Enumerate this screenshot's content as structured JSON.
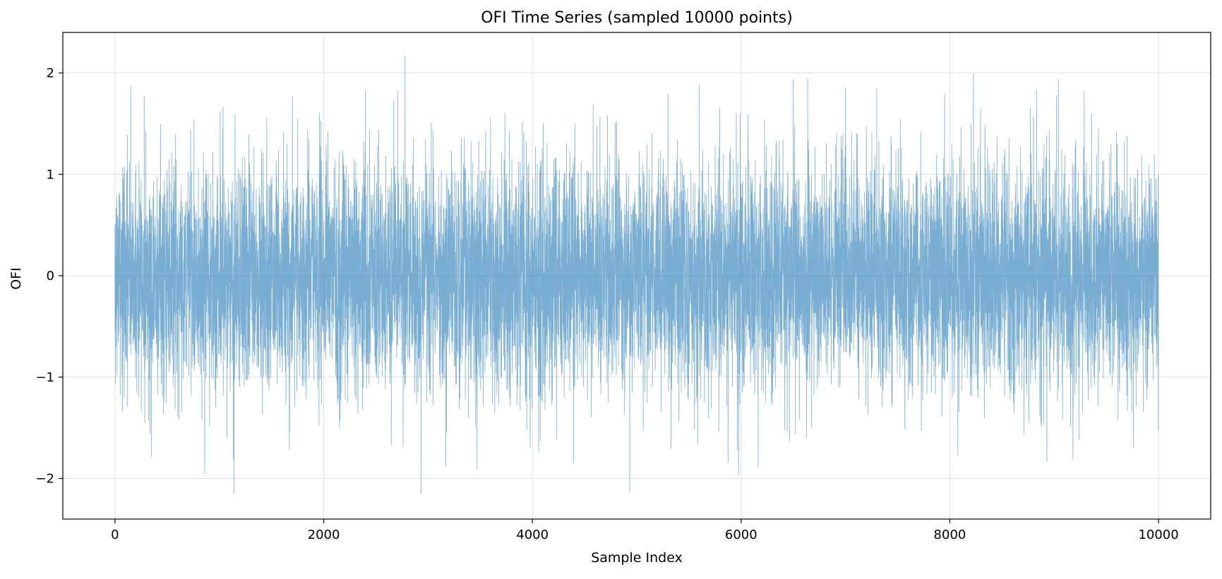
{
  "chart_data": {
    "type": "line",
    "title": "OFI Time Series (sampled 10000 points)",
    "xlabel": "Sample Index",
    "ylabel": "OFI",
    "xlim": [
      -500,
      10500
    ],
    "ylim": [
      -2.4,
      2.4
    ],
    "xticks": [
      0,
      2000,
      4000,
      6000,
      8000,
      10000
    ],
    "xtick_labels": [
      "0",
      "2000",
      "4000",
      "6000",
      "8000",
      "10000"
    ],
    "yticks": [
      -2,
      -1,
      0,
      1,
      2
    ],
    "ytick_labels": [
      "−2",
      "−1",
      "0",
      "1",
      "2"
    ],
    "grid": true,
    "legend": "none",
    "colors": {
      "series": "#1f77b4",
      "grid": "#e0e0e0",
      "axes": "#000000"
    },
    "series": [
      {
        "name": "OFI",
        "n_points": 10000,
        "x_start": 0,
        "x_end": 9999,
        "mean": 0,
        "std": 0.55,
        "min": -2.15,
        "max": 2.17,
        "notable_peaks": [
          {
            "x": 2780,
            "y": 2.17
          },
          {
            "x": 9040,
            "y": 1.94
          },
          {
            "x": 6500,
            "y": 1.93
          },
          {
            "x": 5600,
            "y": 1.88
          },
          {
            "x": 150,
            "y": 1.87
          },
          {
            "x": 2400,
            "y": 1.83
          },
          {
            "x": 7300,
            "y": 1.85
          },
          {
            "x": 7000,
            "y": 1.85
          },
          {
            "x": 1700,
            "y": 1.77
          },
          {
            "x": 5300,
            "y": 1.79
          },
          {
            "x": 7950,
            "y": 1.8
          }
        ],
        "notable_troughs": [
          {
            "x": 1140,
            "y": -2.15
          },
          {
            "x": 860,
            "y": -1.95
          },
          {
            "x": 3470,
            "y": -1.91
          },
          {
            "x": 3170,
            "y": -1.88
          },
          {
            "x": 8930,
            "y": -1.83
          },
          {
            "x": 9180,
            "y": -1.81
          },
          {
            "x": 350,
            "y": -1.79
          },
          {
            "x": 4060,
            "y": -1.74
          },
          {
            "x": 9760,
            "y": -1.69
          },
          {
            "x": 1670,
            "y": -1.71
          }
        ]
      }
    ]
  }
}
